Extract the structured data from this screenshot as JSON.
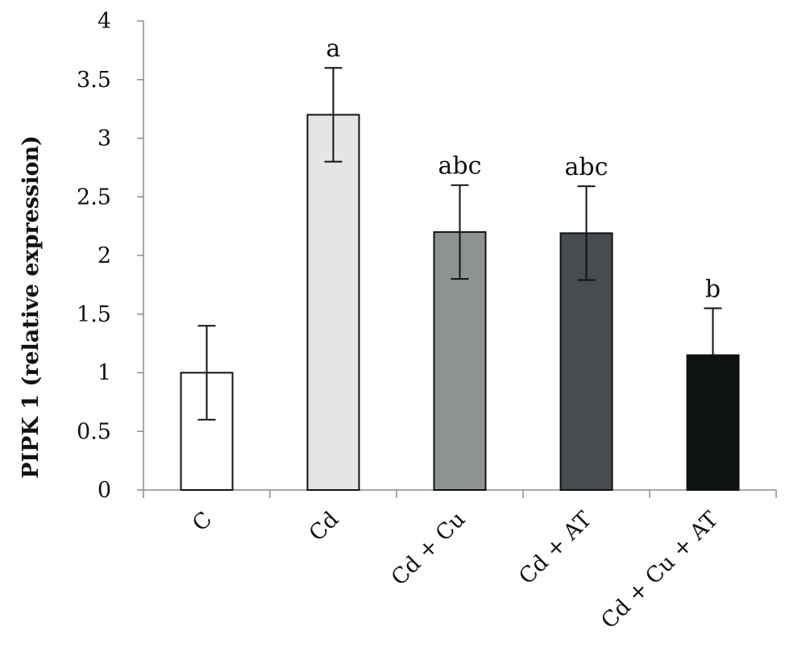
{
  "chart_data": {
    "type": "bar",
    "categories": [
      "C",
      "Cd",
      "Cd + Cu",
      "Cd + AT",
      "Cd + Cu + AT"
    ],
    "values": [
      1.0,
      3.2,
      2.2,
      2.19,
      1.15
    ],
    "errors": [
      0.4,
      0.4,
      0.4,
      0.4,
      0.4
    ],
    "significance": [
      "",
      "a",
      "abc",
      "abc",
      "b"
    ],
    "bar_colors": [
      "#ffffff",
      "#e3e6e3",
      "#8e9293",
      "#464c4f",
      "#0f1212"
    ],
    "edge_color": "#111111",
    "title": "",
    "xlabel": "",
    "ylabel": "PIPK 1 (relative expression)",
    "ylim": [
      0,
      4
    ],
    "yticks": [
      0,
      0.5,
      1,
      1.5,
      2,
      2.5,
      3,
      3.5,
      4
    ],
    "ytick_labels": [
      "0",
      "0.5",
      "1",
      "1.5",
      "2",
      "2.5",
      "3",
      "3.5",
      "4"
    ],
    "grid": false,
    "legend": "none"
  }
}
